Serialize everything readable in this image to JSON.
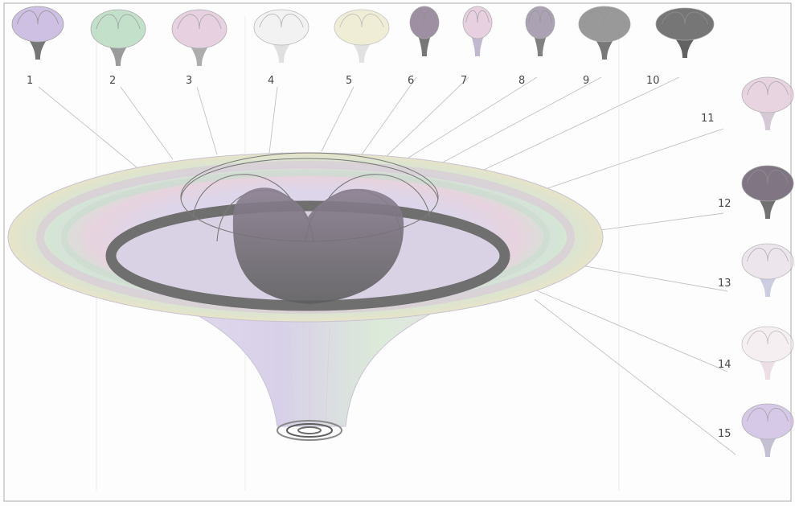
{
  "labels": [
    "1",
    "2",
    "3",
    "4",
    "5",
    "6",
    "7",
    "8",
    "9",
    "10",
    "11",
    "12",
    "13",
    "14",
    "15"
  ],
  "colors": {
    "frame": "#b9b9b9",
    "leader": "#c2c2c2",
    "label": "#4a4a4a",
    "shell_dark": "#6f6f6f",
    "pastel_green": "#b9dcc3",
    "pastel_violet": "#ccbde2",
    "pastel_pink": "#e2c6d8",
    "pastel_yellow": "#e6e3bb"
  }
}
